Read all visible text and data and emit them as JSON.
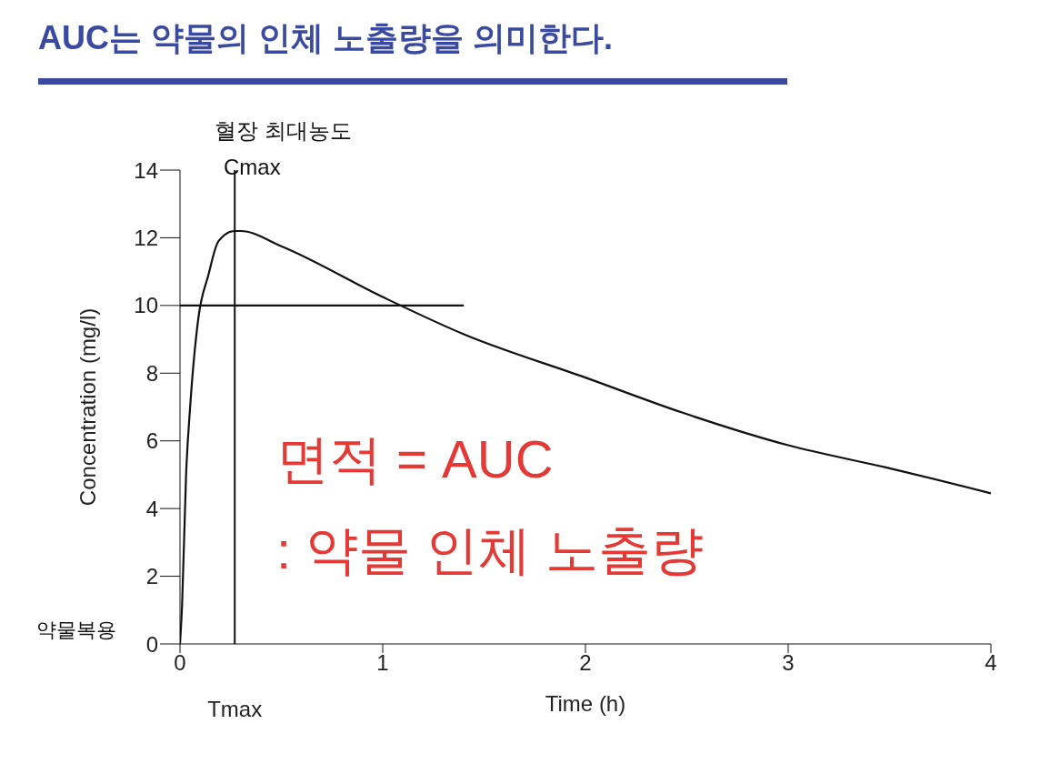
{
  "chart_data": {
    "type": "line",
    "title": "AUC는 약물의 인체 노출량을 의미한다.",
    "xlabel": "Time (h)",
    "ylabel": "Concentration (mg/l)",
    "series": [
      {
        "color": "#111111",
        "x": [
          0,
          0.01,
          0.03,
          0.05,
          0.09,
          0.14,
          0.19,
          0.27,
          0.3,
          0.5,
          1.0,
          1.4,
          2.0,
          2.48,
          3.0,
          3.5,
          4.0
        ],
        "values": [
          0,
          1.1,
          5.0,
          7.0,
          9.6,
          10.9,
          11.9,
          12.2,
          12.2,
          11.75,
          10.25,
          9.15,
          7.87,
          6.83,
          5.87,
          5.19,
          4.45
        ]
      },
      {
        "color": "#111111",
        "x": [
          0,
          1.4
        ],
        "values": [
          10,
          10
        ]
      }
    ],
    "ref_lines": [
      {
        "axis": "x",
        "value": 0.27,
        "label": "Tmax",
        "color": "#111111"
      }
    ],
    "annotations": [
      "혈장 최대농도",
      "Cmax",
      "약물복용",
      "면적 = AUC",
      ": 약물 인체 노출량"
    ],
    "xlim": [
      0,
      4
    ],
    "xticks": [
      0,
      1,
      2,
      3,
      4
    ],
    "ylim": [
      0,
      14
    ],
    "yticks": [
      0,
      2,
      4,
      6,
      8,
      10,
      12,
      14
    ],
    "marker": "none",
    "line_style": "solid",
    "legend": false,
    "grid": false
  }
}
